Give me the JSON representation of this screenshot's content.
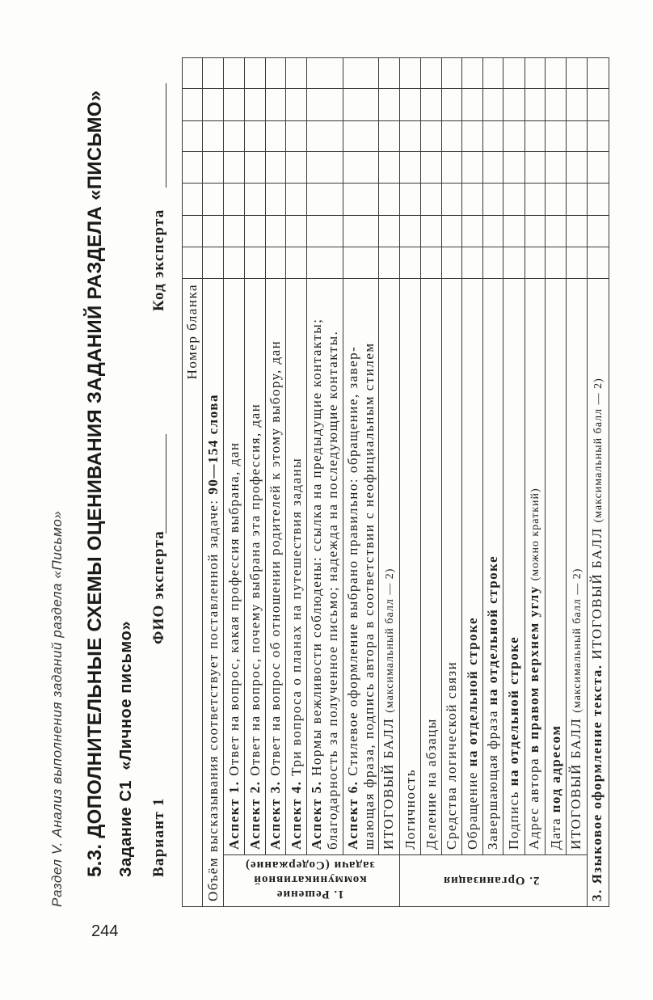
{
  "page_number": "244",
  "running_header": "Раздел V. Анализ выполнения заданий раздела «Письмо»",
  "section_title": "5.3. ДОПОЛНИТЕЛЬНЫЕ СХЕМЫ ОЦЕНИВАНИЯ ЗАДАНИЙ РАЗДЕЛА «ПИСЬМО»",
  "task_title": "Задание С1  «Личное письмо»",
  "variant": "Вариант 1",
  "expert_name_label": "ФИО эксперта",
  "expert_code_label": "Код эксперта",
  "table": {
    "form_number_label": "Номер бланка",
    "volume_row": [
      [
        "",
        "Объём высказывания соответствует поставленной задаче: "
      ],
      [
        "b",
        "90—154 слова"
      ]
    ],
    "sections": [
      {
        "label_lines": [
          "1. Решение",
          "коммуникативной",
          "задачи (Содержание)"
        ],
        "rows": [
          [
            [
              "b",
              "Аспект 1."
            ],
            [
              "",
              " Ответ на вопрос, какая профессия выбрана, дан"
            ]
          ],
          [
            [
              "b",
              "Аспект 2."
            ],
            [
              "",
              " Ответ на вопрос, почему выбрана эта профессия, дан"
            ]
          ],
          [
            [
              "b",
              "Аспект 3."
            ],
            [
              "",
              " Ответ на вопрос об отношении родителей к этому выбору, дан"
            ]
          ],
          [
            [
              "b",
              "Аспект 4."
            ],
            [
              "",
              " Три вопроса о планах на путешествия заданы"
            ]
          ],
          [
            [
              "b",
              "Аспект 5."
            ],
            [
              "",
              " Нормы вежливости соблюдены: ссылка на предыдущие контакты;"
            ],
            [
              "br",
              ""
            ],
            [
              "",
              "благодарность за полученное письмо; надежда на последующие контакты."
            ]
          ],
          [
            [
              "b",
              "Аспект 6."
            ],
            [
              "",
              " Стилевое оформление выбрано  правильно: обращение, завер-"
            ],
            [
              "br",
              ""
            ],
            [
              "",
              "шающая фраза, подпись автора  в соответствии с неофициальным стилем"
            ]
          ],
          [
            [
              "",
              "ИТОГОВЫЙ БАЛЛ "
            ],
            [
              "s",
              "(максимальный балл — 2)"
            ]
          ]
        ]
      },
      {
        "label_lines": [
          "2. Организация"
        ],
        "rows": [
          [
            [
              "",
              "Логичность"
            ]
          ],
          [
            [
              "",
              "Деление на абзацы"
            ]
          ],
          [
            [
              "",
              "Средства логической связи"
            ]
          ],
          [
            [
              "",
              "Обращение "
            ],
            [
              "b",
              "на отдельной строке"
            ]
          ],
          [
            [
              "",
              "Завершающая фраза "
            ],
            [
              "b",
              "на отдельной строке"
            ]
          ],
          [
            [
              "",
              "Подпись "
            ],
            [
              "b",
              "на отдельной строке"
            ]
          ],
          [
            [
              "",
              "Адрес автора "
            ],
            [
              "b",
              "в правом верхнем углу"
            ],
            [
              "",
              " "
            ],
            [
              "s",
              "(можно краткий)"
            ]
          ],
          [
            [
              "",
              "Дата "
            ],
            [
              "b",
              "под адресом"
            ]
          ],
          [
            [
              "",
              "ИТОГОВЫЙ БАЛЛ "
            ],
            [
              "s",
              "(максимальный балл — 2)"
            ]
          ]
        ]
      }
    ],
    "language_row": [
      [
        "b",
        "3. Языковое оформление текста."
      ],
      [
        "",
        " ИТОГОВЫЙ БАЛЛ "
      ],
      [
        "s",
        "(максимальный балл — 2)"
      ]
    ]
  }
}
